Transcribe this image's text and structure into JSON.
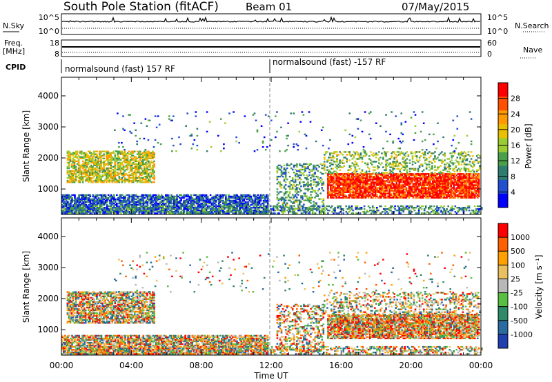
{
  "header": {
    "station": "South Pole Station (fitACF)",
    "beam": "Beam 01",
    "date": "07/May/2015"
  },
  "panel_labels": {
    "nsky": "N.Sky",
    "nsearch": "N.Search",
    "freq_top": "Freq.",
    "freq_unit": "[MHz]",
    "nave": "Nave",
    "cpid": "CPID"
  },
  "aux_axes": {
    "noise_left": [
      "10^5",
      "10^0"
    ],
    "noise_right": [
      "10^5",
      "10^0"
    ],
    "freq_left": [
      "18",
      "8"
    ],
    "nave_right": [
      "60",
      "0"
    ]
  },
  "cpid_segments": [
    {
      "label": "normalsound (fast) 157 RF",
      "start_hour": 0
    },
    {
      "label": "normalsound (fast) -157 RF",
      "start_hour": 12
    }
  ],
  "chart_data": [
    {
      "type": "heatmap",
      "name": "power-panel",
      "ylabel": "Slant Range [km]",
      "xlabel": "",
      "xlim": [
        0,
        24
      ],
      "ylim": [
        180,
        4600
      ],
      "yticks": [
        1000,
        2000,
        3000,
        4000
      ],
      "colorbar": {
        "label": "Power [dB]",
        "range": [
          0,
          32
        ],
        "ticks": [
          "28",
          "24",
          "20",
          "16",
          "12",
          "8",
          "4"
        ],
        "colors": [
          "#0000ff",
          "#2050d0",
          "#2e7d6e",
          "#4aa04a",
          "#9acd32",
          "#e8c000",
          "#ff9900",
          "#ff5000",
          "#ff0000"
        ]
      },
      "regions": [
        {
          "t0": 0.3,
          "t1": 5.3,
          "r0": 1200,
          "r1": 2200,
          "level": 0.55,
          "density": 0.7
        },
        {
          "t0": 0.0,
          "t1": 11.8,
          "r0": 200,
          "r1": 800,
          "level": 0.2,
          "density": 0.75
        },
        {
          "t0": 12.3,
          "t1": 15.0,
          "r0": 300,
          "r1": 1800,
          "level": 0.35,
          "density": 0.35
        },
        {
          "t0": 15.2,
          "t1": 23.9,
          "r0": 700,
          "r1": 1500,
          "level": 0.92,
          "density": 0.85
        },
        {
          "t0": 15.0,
          "t1": 23.9,
          "r0": 1500,
          "r1": 2200,
          "level": 0.45,
          "density": 0.3
        },
        {
          "t0": 0.0,
          "t1": 24.0,
          "r0": 200,
          "r1": 450,
          "level": 0.3,
          "density": 0.45
        },
        {
          "t0": 3.0,
          "t1": 23.5,
          "r0": 2200,
          "r1": 3500,
          "level": 0.25,
          "density": 0.03
        }
      ]
    },
    {
      "type": "heatmap",
      "name": "velocity-panel",
      "ylabel": "Slant Range [km]",
      "xlabel": "Time UT",
      "xlim": [
        0,
        24
      ],
      "ylim": [
        180,
        4600
      ],
      "yticks": [
        1000,
        2000,
        3000,
        4000
      ],
      "xtick_labels": [
        "00:00",
        "04:00",
        "08:00",
        "12:00",
        "16:00",
        "20:00",
        "00:00"
      ],
      "xtick_hours": [
        0,
        4,
        8,
        12,
        16,
        20,
        24
      ],
      "colorbar": {
        "label": "Velocity [m s⁻¹]",
        "ticks": [
          "1000",
          "500",
          "100",
          "25",
          "-25",
          "-100",
          "-500",
          "-1000"
        ],
        "colors": [
          "#2040b0",
          "#2a6aa0",
          "#2e8a68",
          "#58c040",
          "#b8b8b8",
          "#e8c060",
          "#ffa000",
          "#ff6000",
          "#ff0000"
        ]
      },
      "regions": [
        {
          "t0": 0.3,
          "t1": 5.3,
          "r0": 1200,
          "r1": 2200,
          "level": 0.55,
          "density": 0.7
        },
        {
          "t0": 0.0,
          "t1": 11.8,
          "r0": 200,
          "r1": 800,
          "level": 0.2,
          "density": 0.75
        },
        {
          "t0": 12.3,
          "t1": 15.0,
          "r0": 300,
          "r1": 1800,
          "level": 0.35,
          "density": 0.35
        },
        {
          "t0": 15.2,
          "t1": 23.9,
          "r0": 700,
          "r1": 1500,
          "level": 0.92,
          "density": 0.85
        },
        {
          "t0": 15.0,
          "t1": 23.9,
          "r0": 1500,
          "r1": 2200,
          "level": 0.45,
          "density": 0.3
        },
        {
          "t0": 0.0,
          "t1": 24.0,
          "r0": 200,
          "r1": 450,
          "level": 0.3,
          "density": 0.45
        },
        {
          "t0": 3.0,
          "t1": 23.5,
          "r0": 2200,
          "r1": 3500,
          "level": 0.25,
          "density": 0.03
        }
      ]
    }
  ]
}
